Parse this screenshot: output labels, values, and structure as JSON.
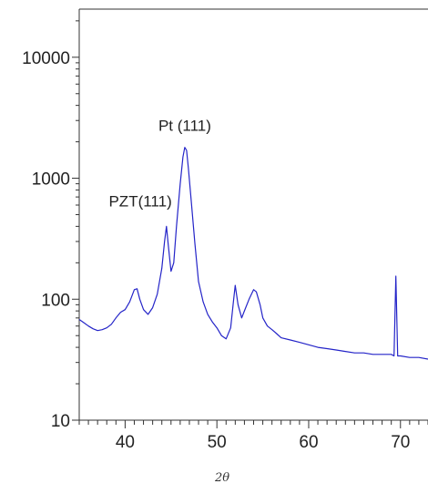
{
  "chart_data": {
    "type": "line",
    "title": "",
    "xlabel": "2θ",
    "ylabel": "",
    "xlim": [
      35,
      73
    ],
    "ylim": [
      10,
      25000
    ],
    "yscale": "log",
    "grid": false,
    "line_color": "#2424c8",
    "x_ticks": [
      40,
      50,
      60,
      70
    ],
    "x_tick_labels": [
      "40",
      "50",
      "60",
      "70"
    ],
    "y_ticks": [
      10,
      100,
      1000,
      10000
    ],
    "y_tick_labels": [
      "10",
      "100",
      "1000",
      "10000"
    ],
    "annotations": [
      {
        "text": "Pt (111)",
        "x": 46.7,
        "y": 1800
      },
      {
        "text": "PZT(111)",
        "x": 44.6,
        "y": 400
      }
    ],
    "series": [
      {
        "x": [
          35,
          35.5,
          36,
          36.5,
          37,
          37.5,
          38,
          38.5,
          39,
          39.5,
          40,
          40.5,
          41,
          41.3,
          41.6,
          42,
          42.5,
          43,
          43.5,
          44,
          44.3,
          44.5,
          44.7,
          45,
          45.3,
          45.6,
          46,
          46.3,
          46.5,
          46.7,
          46.9,
          47.2,
          47.6,
          48,
          48.5,
          49,
          49.5,
          50,
          50.5,
          51,
          51.5,
          51.8,
          52,
          52.3,
          52.7,
          53,
          53.5,
          54,
          54.3,
          54.7,
          55,
          55.5,
          56,
          56.5,
          57,
          58,
          59,
          60,
          61,
          62,
          63,
          64,
          65,
          66,
          67,
          68,
          69,
          69.3,
          69.5,
          69.7,
          70,
          71,
          72,
          73
        ],
        "y": [
          68,
          64,
          60,
          57,
          55,
          56,
          58,
          62,
          70,
          78,
          82,
          95,
          120,
          122,
          100,
          82,
          75,
          85,
          110,
          180,
          300,
          400,
          280,
          170,
          200,
          400,
          900,
          1500,
          1800,
          1700,
          1200,
          650,
          290,
          140,
          95,
          75,
          65,
          58,
          50,
          47,
          58,
          95,
          130,
          90,
          70,
          80,
          100,
          120,
          115,
          90,
          70,
          60,
          56,
          52,
          48,
          46,
          44,
          42,
          40,
          39,
          38,
          37,
          36,
          36,
          35,
          35,
          35,
          34,
          155,
          34,
          34,
          33,
          33,
          32
        ]
      }
    ]
  }
}
